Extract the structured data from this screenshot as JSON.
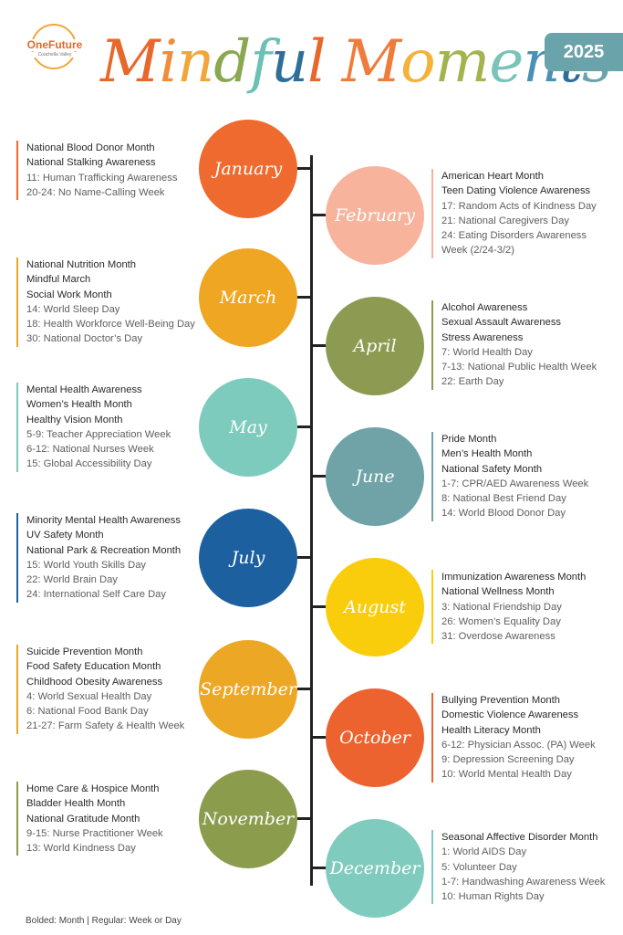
{
  "header": {
    "logo_name": "OneFuture",
    "logo_subtitle": "Coachella Valley",
    "title_letters": [
      "M",
      "i",
      "n",
      "d",
      "f",
      "u",
      "l",
      " ",
      "M",
      "o",
      "m",
      "e",
      "n",
      "t",
      "s"
    ],
    "title_colors": [
      "#e8672a",
      "#f08c3a",
      "#f2a53a",
      "#8aa84f",
      "#6cc0b4",
      "#2e6f9a",
      "#e8672a",
      " ",
      "#ef7c3b",
      "#f4b23a",
      "#a3b34e",
      "#79c3b8",
      "#4a8fb4",
      "#2e6f9a",
      "#6aa3a9"
    ],
    "year": "2025"
  },
  "months": [
    {
      "name": "January",
      "color": "#ef6a2e",
      "side": "left",
      "bold": [
        "National Blood Donor Month",
        "National Stalking Awareness"
      ],
      "regular": [
        "11: Human Trafficking Awareness",
        "20-24: No Name-Calling Week"
      ]
    },
    {
      "name": "February",
      "color": "#f7b39c",
      "side": "right",
      "bold": [
        "American Heart Month",
        "Teen Dating Violence Awareness"
      ],
      "regular": [
        "17: Random Acts of Kindness Day",
        "21: National Caregivers Day",
        "24: Eating Disorders Awareness",
        "Week (2/24-3/2)"
      ]
    },
    {
      "name": "March",
      "color": "#efa622",
      "side": "left",
      "bold": [
        "National Nutrition Month",
        "Mindful March",
        "Social Work Month"
      ],
      "regular": [
        "14: World Sleep Day",
        "18: Health Workforce Well-Being Day",
        "30: National Doctor’s Day"
      ]
    },
    {
      "name": "April",
      "color": "#8c9b51",
      "side": "right",
      "bold": [
        "Alcohol Awareness",
        "Sexual Assault Awareness",
        "Stress Awareness"
      ],
      "regular": [
        "7: World Health Day",
        "7-13: National Public Health Week",
        "22: Earth Day"
      ]
    },
    {
      "name": "May",
      "color": "#7dcbbc",
      "side": "left",
      "bold": [
        "Mental Health Awareness",
        "Women’s Health Month",
        "Healthy Vision Month"
      ],
      "regular": [
        "5-9: Teacher Appreciation Week",
        "6-12: National Nurses Week",
        "15: Global Accessibility Day"
      ]
    },
    {
      "name": "June",
      "color": "#6fa3a7",
      "side": "right",
      "bold": [
        "Pride Month",
        "Men’s Health Month",
        "National Safety Month"
      ],
      "regular": [
        "1-7: CPR/AED Awareness Week",
        "8: National Best Friend Day",
        "14: World Blood Donor Day"
      ]
    },
    {
      "name": "July",
      "color": "#1c60a0",
      "side": "left",
      "bold": [
        "Minority Mental Health Awareness",
        "UV Safety Month",
        "National Park & Recreation Month"
      ],
      "regular": [
        "15: World Youth Skills Day",
        "22: World Brain Day",
        "24: International Self Care Day"
      ]
    },
    {
      "name": "August",
      "color": "#f9cd0c",
      "side": "right",
      "bold": [
        "Immunization Awareness Month",
        "National Wellness Month"
      ],
      "regular": [
        "3: National Friendship Day",
        "26: Women’s Equality Day",
        "31: Overdose Awareness"
      ]
    },
    {
      "name": "September",
      "color": "#eca724",
      "side": "left",
      "bold": [
        "Suicide Prevention Month",
        "Food Safety Education Month",
        "Childhood Obesity Awareness"
      ],
      "regular": [
        "4: World Sexual Health Day",
        "6: National Food Bank Day",
        "21-27: Farm Safety & Health Week"
      ]
    },
    {
      "name": "October",
      "color": "#ec6330",
      "side": "right",
      "bold": [
        "Bullying Prevention Month",
        "Domestic Violence Awareness",
        "Health Literacy Month"
      ],
      "regular": [
        "6-12: Physician Assoc. (PA) Week",
        "9: Depression Screening Day",
        "10: World Mental Health Day"
      ]
    },
    {
      "name": "November",
      "color": "#8b9c4c",
      "side": "left",
      "bold": [
        "Home Care & Hospice Month",
        "Bladder Health Month",
        "National Gratitude Month"
      ],
      "regular": [
        "9-15: Nurse Practitioner Week",
        "13: World Kindness Day"
      ]
    },
    {
      "name": "December",
      "color": "#7fcbbd",
      "side": "right",
      "bold": [
        "Seasonal Affective Disorder Month"
      ],
      "regular": [
        "1: World AIDS Day",
        "5: Volunteer Day",
        "1-7: Handwashing Awareness Week",
        "10: Human Rights Day"
      ]
    }
  ],
  "footer": {
    "bold_label": "Bolded: Month",
    "separator": "|",
    "regular_label": "Regular: Week or Day"
  }
}
